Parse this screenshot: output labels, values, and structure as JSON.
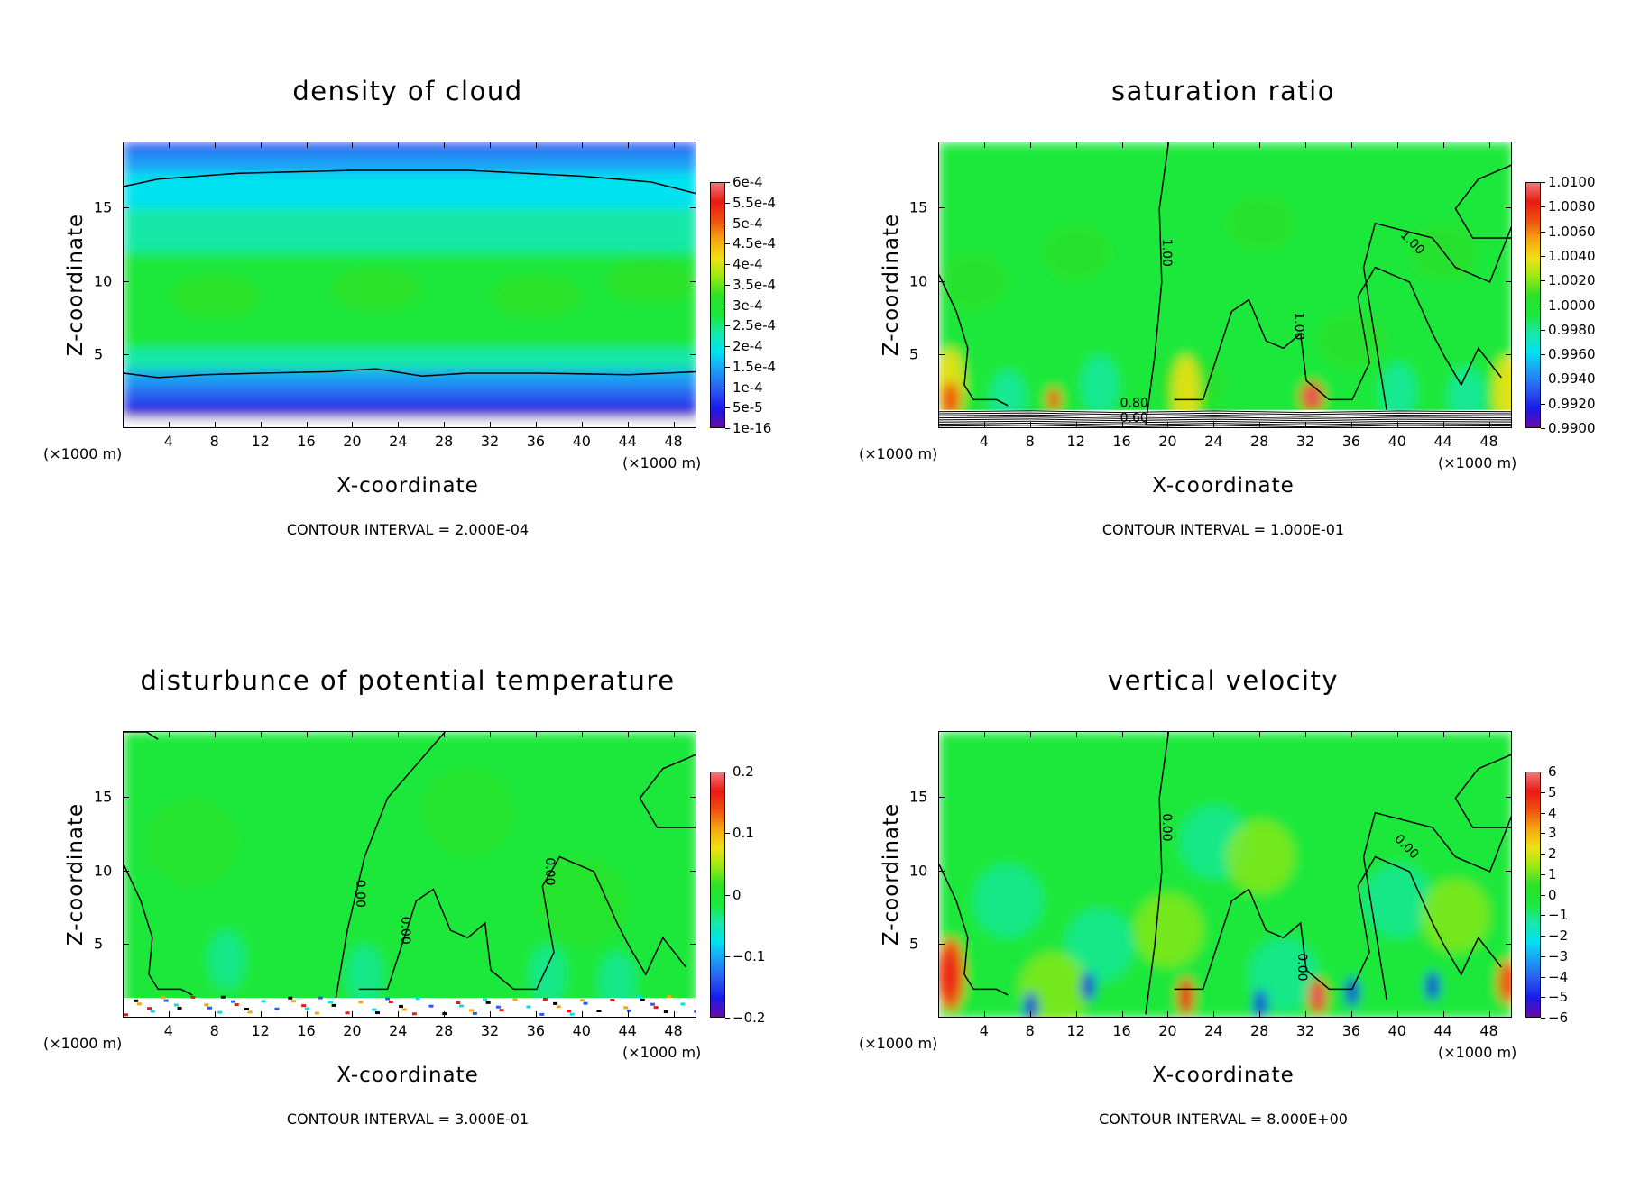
{
  "colors": {
    "scale": [
      "#6a0aa8",
      "#1a1ae8",
      "#2a5af0",
      "#1e9bf5",
      "#00e2f0",
      "#18e8a8",
      "#1ae83a",
      "#2ee028",
      "#9ae814",
      "#f0e016",
      "#f5a610",
      "#f05010",
      "#e81a14",
      "#f07878"
    ],
    "contour_line": "#000000"
  },
  "shared": {
    "xlabel": "X-coordinate",
    "ylabel": "Z-coordinate",
    "x_unit_left": "(×1000 m)",
    "x_unit_right": "(×1000 m)",
    "x_ticks": [
      "4",
      "8",
      "12",
      "16",
      "20",
      "24",
      "28",
      "32",
      "36",
      "40",
      "44",
      "48"
    ],
    "y_ticks": [
      "5",
      "10",
      "15"
    ]
  },
  "chart_data": [
    {
      "type": "heatmap",
      "title": "density of cloud",
      "xlabel": "X-coordinate",
      "ylabel": "Z-coordinate",
      "xlim": [
        0,
        50
      ],
      "ylim": [
        0,
        19.5
      ],
      "contour_interval": "CONTOUR INTERVAL = 2.000E-04",
      "colorbar_labels": [
        "6e-4",
        "5.5e-4",
        "5e-4",
        "4.5e-4",
        "4e-4",
        "3.5e-4",
        "3e-4",
        "2.5e-4",
        "2e-4",
        "1.5e-4",
        "1e-4",
        "5e-5",
        "1e-16"
      ],
      "contour_labels": []
    },
    {
      "type": "heatmap",
      "title": "saturation ratio",
      "xlabel": "X-coordinate",
      "ylabel": "Z-coordinate",
      "xlim": [
        0,
        50
      ],
      "ylim": [
        0,
        19.5
      ],
      "contour_interval": "CONTOUR INTERVAL = 1.000E-01",
      "colorbar_labels": [
        "1.0100",
        "1.0080",
        "1.0060",
        "1.0040",
        "1.0020",
        "1.0000",
        "0.9980",
        "0.9960",
        "0.9940",
        "0.9920",
        "0.9900"
      ],
      "contour_labels": [
        "1.00",
        "1.00",
        "1.00",
        "0.80",
        "0.60"
      ]
    },
    {
      "type": "heatmap",
      "title": "disturbunce of potential temperature",
      "xlabel": "X-coordinate",
      "ylabel": "Z-coordinate",
      "xlim": [
        0,
        50
      ],
      "ylim": [
        0,
        19.5
      ],
      "contour_interval": "CONTOUR INTERVAL = 3.000E-01",
      "colorbar_labels": [
        "0.2",
        "0.1",
        "0",
        "−0.1",
        "−0.2"
      ],
      "contour_labels": [
        "0.00",
        "0.00",
        "0.00"
      ]
    },
    {
      "type": "heatmap",
      "title": "vertical velocity",
      "xlabel": "X-coordinate",
      "ylabel": "Z-coordinate",
      "xlim": [
        0,
        50
      ],
      "ylim": [
        0,
        19.5
      ],
      "contour_interval": "CONTOUR INTERVAL = 8.000E+00",
      "colorbar_labels": [
        "6",
        "5",
        "4",
        "3",
        "2",
        "1",
        "0",
        "−1",
        "−2",
        "−3",
        "−4",
        "−5",
        "−6"
      ],
      "contour_labels": [
        "0.00",
        "0.00",
        "0.00"
      ]
    }
  ]
}
